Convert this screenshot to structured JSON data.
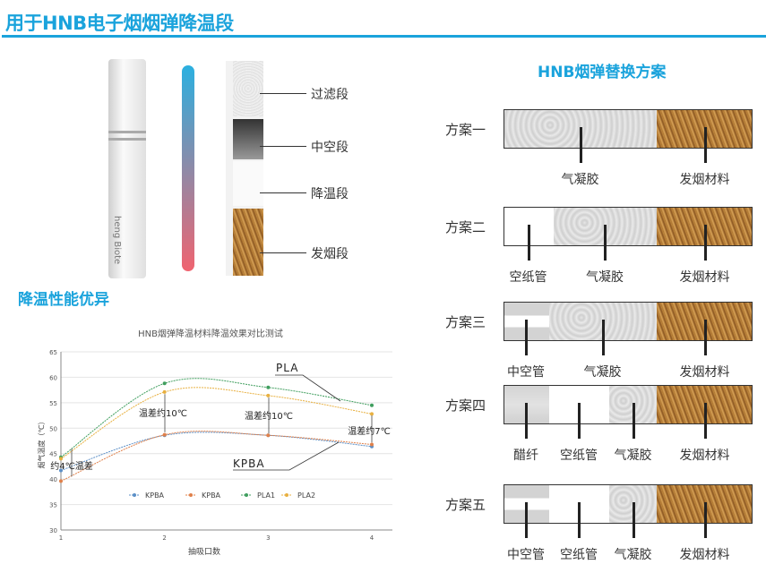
{
  "title": "用于HNB电子烟烟弹降温段",
  "illustration": {
    "labels": [
      "过滤段",
      "中空段",
      "降温段",
      "发烟段"
    ],
    "brand_text": "heng Biote"
  },
  "left_heading": "降温性能优异",
  "right_heading": "HNB烟弹替换方案",
  "colors": {
    "accent": "#1aa3dc",
    "gradient_top": "#2bb0e0",
    "gradient_bottom": "#f06470"
  },
  "schemes": [
    {
      "name": "方案一",
      "segments": [
        {
          "type": "gel",
          "label": "气凝胶"
        },
        {
          "type": "tobacco",
          "label": "发烟材料"
        }
      ]
    },
    {
      "name": "方案二",
      "segments": [
        {
          "type": "paper",
          "label": "空纸管"
        },
        {
          "type": "gel",
          "label": "气凝胶"
        },
        {
          "type": "tobacco",
          "label": "发烟材料"
        }
      ]
    },
    {
      "name": "方案三",
      "segments": [
        {
          "type": "hollow",
          "label": "中空管"
        },
        {
          "type": "gel",
          "label": "气凝胶"
        },
        {
          "type": "tobacco",
          "label": "发烟材料"
        }
      ]
    },
    {
      "name": "方案四",
      "segments": [
        {
          "type": "acetate",
          "label": "醋纤"
        },
        {
          "type": "paper",
          "label": "空纸管"
        },
        {
          "type": "gel",
          "label": "气凝胶"
        },
        {
          "type": "tobacco",
          "label": "发烟材料"
        }
      ]
    },
    {
      "name": "方案五",
      "segments": [
        {
          "type": "hollow",
          "label": "中空管"
        },
        {
          "type": "paper",
          "label": "空纸管"
        },
        {
          "type": "gel",
          "label": "气凝胶"
        },
        {
          "type": "tobacco",
          "label": "发烟材料"
        }
      ]
    }
  ],
  "chart_data": {
    "type": "line",
    "title": "HNB烟弹降温材料降温效果对比测试",
    "xlabel": "抽吸口数",
    "ylabel": "烟气温度（℃）",
    "x": [
      1,
      2,
      3,
      4
    ],
    "xlim": [
      1,
      4
    ],
    "ylim": [
      30,
      65
    ],
    "yticks": [
      30,
      35,
      40,
      45,
      50,
      55,
      60,
      65
    ],
    "grid": true,
    "legend": "bottom-inside",
    "series": [
      {
        "name": "KPBA",
        "color": "#5b8fc7",
        "values": [
          41.7,
          48.6,
          48.6,
          46.4
        ]
      },
      {
        "name": "KPBA",
        "color": "#e0804a",
        "values": [
          39.6,
          48.7,
          48.6,
          46.8
        ]
      },
      {
        "name": "PLA1",
        "color": "#3f9e5e",
        "values": [
          44.3,
          58.8,
          58.0,
          54.5
        ]
      },
      {
        "name": "PLA2",
        "color": "#e8b040",
        "values": [
          44.0,
          57.1,
          56.4,
          52.8
        ]
      }
    ],
    "annotations": [
      "约4℃温差",
      "温差约10℃",
      "温差约10℃",
      "温差约7℃",
      "PLA",
      "KPBA"
    ]
  }
}
